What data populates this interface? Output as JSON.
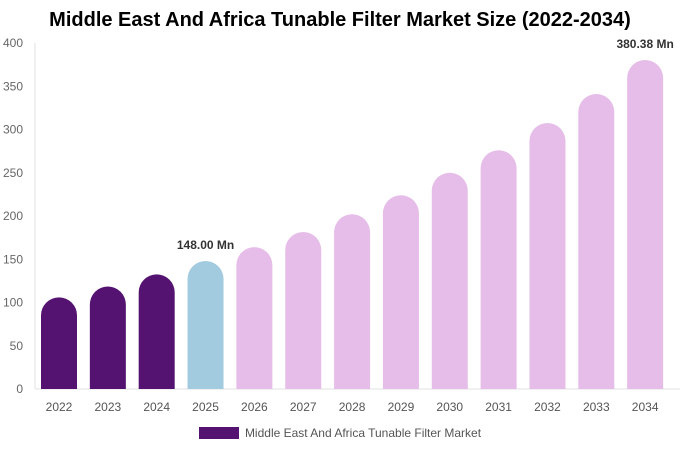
{
  "chart_data": {
    "type": "bar",
    "title": "Middle East And Africa Tunable Filter Market Size (2022-2034)",
    "xlabel": "",
    "ylabel": "",
    "ylim": [
      0,
      400
    ],
    "yticks": [
      0,
      50,
      100,
      150,
      200,
      250,
      300,
      350,
      400
    ],
    "grid": false,
    "legend_placement": "bottom",
    "categories": [
      "2022",
      "2023",
      "2024",
      "2025",
      "2026",
      "2027",
      "2028",
      "2029",
      "2030",
      "2031",
      "2032",
      "2033",
      "2034"
    ],
    "series": [
      {
        "name": "Middle East And Africa Tunable Filter Market",
        "values": [
          106,
          118.5,
          132.5,
          148.0,
          164,
          181.5,
          202,
          224,
          250,
          276,
          307.5,
          341,
          380.38
        ]
      }
    ],
    "bar_colors": {
      "historical": "#541370",
      "current": "#a3cbe0",
      "forecast": "#e6bde9"
    },
    "bar_color_groups": [
      "historical",
      "historical",
      "historical",
      "current",
      "forecast",
      "forecast",
      "forecast",
      "forecast",
      "forecast",
      "forecast",
      "forecast",
      "forecast",
      "forecast"
    ],
    "annotations": [
      {
        "category": "2025",
        "text": "148.00 Mn"
      },
      {
        "category": "2034",
        "text": "380.38 Mn"
      }
    ]
  }
}
